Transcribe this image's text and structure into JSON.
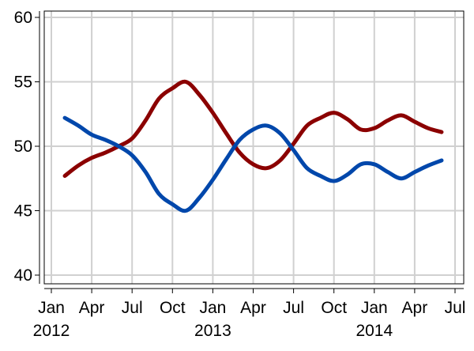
{
  "chart_data": {
    "type": "line",
    "title": "",
    "xlabel": "",
    "ylabel": "",
    "grid": true,
    "legend": "none",
    "ylim": [
      40,
      60
    ],
    "xlim": [
      "2012-01",
      "2014-07"
    ],
    "y_ticks": [
      40,
      45,
      50,
      55,
      60
    ],
    "x_ticks": [
      {
        "date": "2012-01",
        "label": "Jan"
      },
      {
        "date": "2012-04",
        "label": "Apr"
      },
      {
        "date": "2012-07",
        "label": "Jul"
      },
      {
        "date": "2012-10",
        "label": "Oct"
      },
      {
        "date": "2013-01",
        "label": "Jan"
      },
      {
        "date": "2013-04",
        "label": "Apr"
      },
      {
        "date": "2013-07",
        "label": "Jul"
      },
      {
        "date": "2013-10",
        "label": "Oct"
      },
      {
        "date": "2014-01",
        "label": "Jan"
      },
      {
        "date": "2014-04",
        "label": "Apr"
      },
      {
        "date": "2014-07",
        "label": "Jul"
      }
    ],
    "year_labels": [
      {
        "date": "2012-01",
        "label": "2012"
      },
      {
        "date": "2013-01",
        "label": "2013"
      },
      {
        "date": "2014-01",
        "label": "2014"
      }
    ],
    "series": [
      {
        "color": "#8B0000",
        "points": [
          [
            "2012-02",
            47.7
          ],
          [
            "2012-03",
            48.5
          ],
          [
            "2012-04",
            49.1
          ],
          [
            "2012-05",
            49.5
          ],
          [
            "2012-06",
            50.0
          ],
          [
            "2012-07",
            50.6
          ],
          [
            "2012-08",
            52.0
          ],
          [
            "2012-09",
            53.7
          ],
          [
            "2012-10",
            54.5
          ],
          [
            "2012-11",
            55.0
          ],
          [
            "2012-12",
            54.0
          ],
          [
            "2013-01",
            52.6
          ],
          [
            "2013-02",
            51.0
          ],
          [
            "2013-03",
            49.5
          ],
          [
            "2013-04",
            48.6
          ],
          [
            "2013-05",
            48.3
          ],
          [
            "2013-06",
            48.9
          ],
          [
            "2013-07",
            50.2
          ],
          [
            "2013-08",
            51.6
          ],
          [
            "2013-09",
            52.2
          ],
          [
            "2013-10",
            52.6
          ],
          [
            "2013-11",
            52.1
          ],
          [
            "2013-12",
            51.3
          ],
          [
            "2014-01",
            51.4
          ],
          [
            "2014-02",
            52.0
          ],
          [
            "2014-03",
            52.4
          ],
          [
            "2014-04",
            51.9
          ],
          [
            "2014-05",
            51.4
          ],
          [
            "2014-06",
            51.1
          ]
        ]
      },
      {
        "color": "#0047AB",
        "points": [
          [
            "2012-02",
            52.2
          ],
          [
            "2012-03",
            51.6
          ],
          [
            "2012-04",
            50.9
          ],
          [
            "2012-05",
            50.5
          ],
          [
            "2012-06",
            50.0
          ],
          [
            "2012-07",
            49.3
          ],
          [
            "2012-08",
            48.0
          ],
          [
            "2012-09",
            46.3
          ],
          [
            "2012-10",
            45.5
          ],
          [
            "2012-11",
            45.0
          ],
          [
            "2012-12",
            46.0
          ],
          [
            "2013-01",
            47.4
          ],
          [
            "2013-02",
            49.0
          ],
          [
            "2013-03",
            50.5
          ],
          [
            "2013-04",
            51.3
          ],
          [
            "2013-05",
            51.6
          ],
          [
            "2013-06",
            51.0
          ],
          [
            "2013-07",
            49.7
          ],
          [
            "2013-08",
            48.3
          ],
          [
            "2013-09",
            47.7
          ],
          [
            "2013-10",
            47.3
          ],
          [
            "2013-11",
            47.8
          ],
          [
            "2013-12",
            48.6
          ],
          [
            "2014-01",
            48.6
          ],
          [
            "2014-02",
            48.0
          ],
          [
            "2014-03",
            47.5
          ],
          [
            "2014-04",
            48.0
          ],
          [
            "2014-05",
            48.5
          ],
          [
            "2014-06",
            48.9
          ]
        ]
      }
    ]
  }
}
